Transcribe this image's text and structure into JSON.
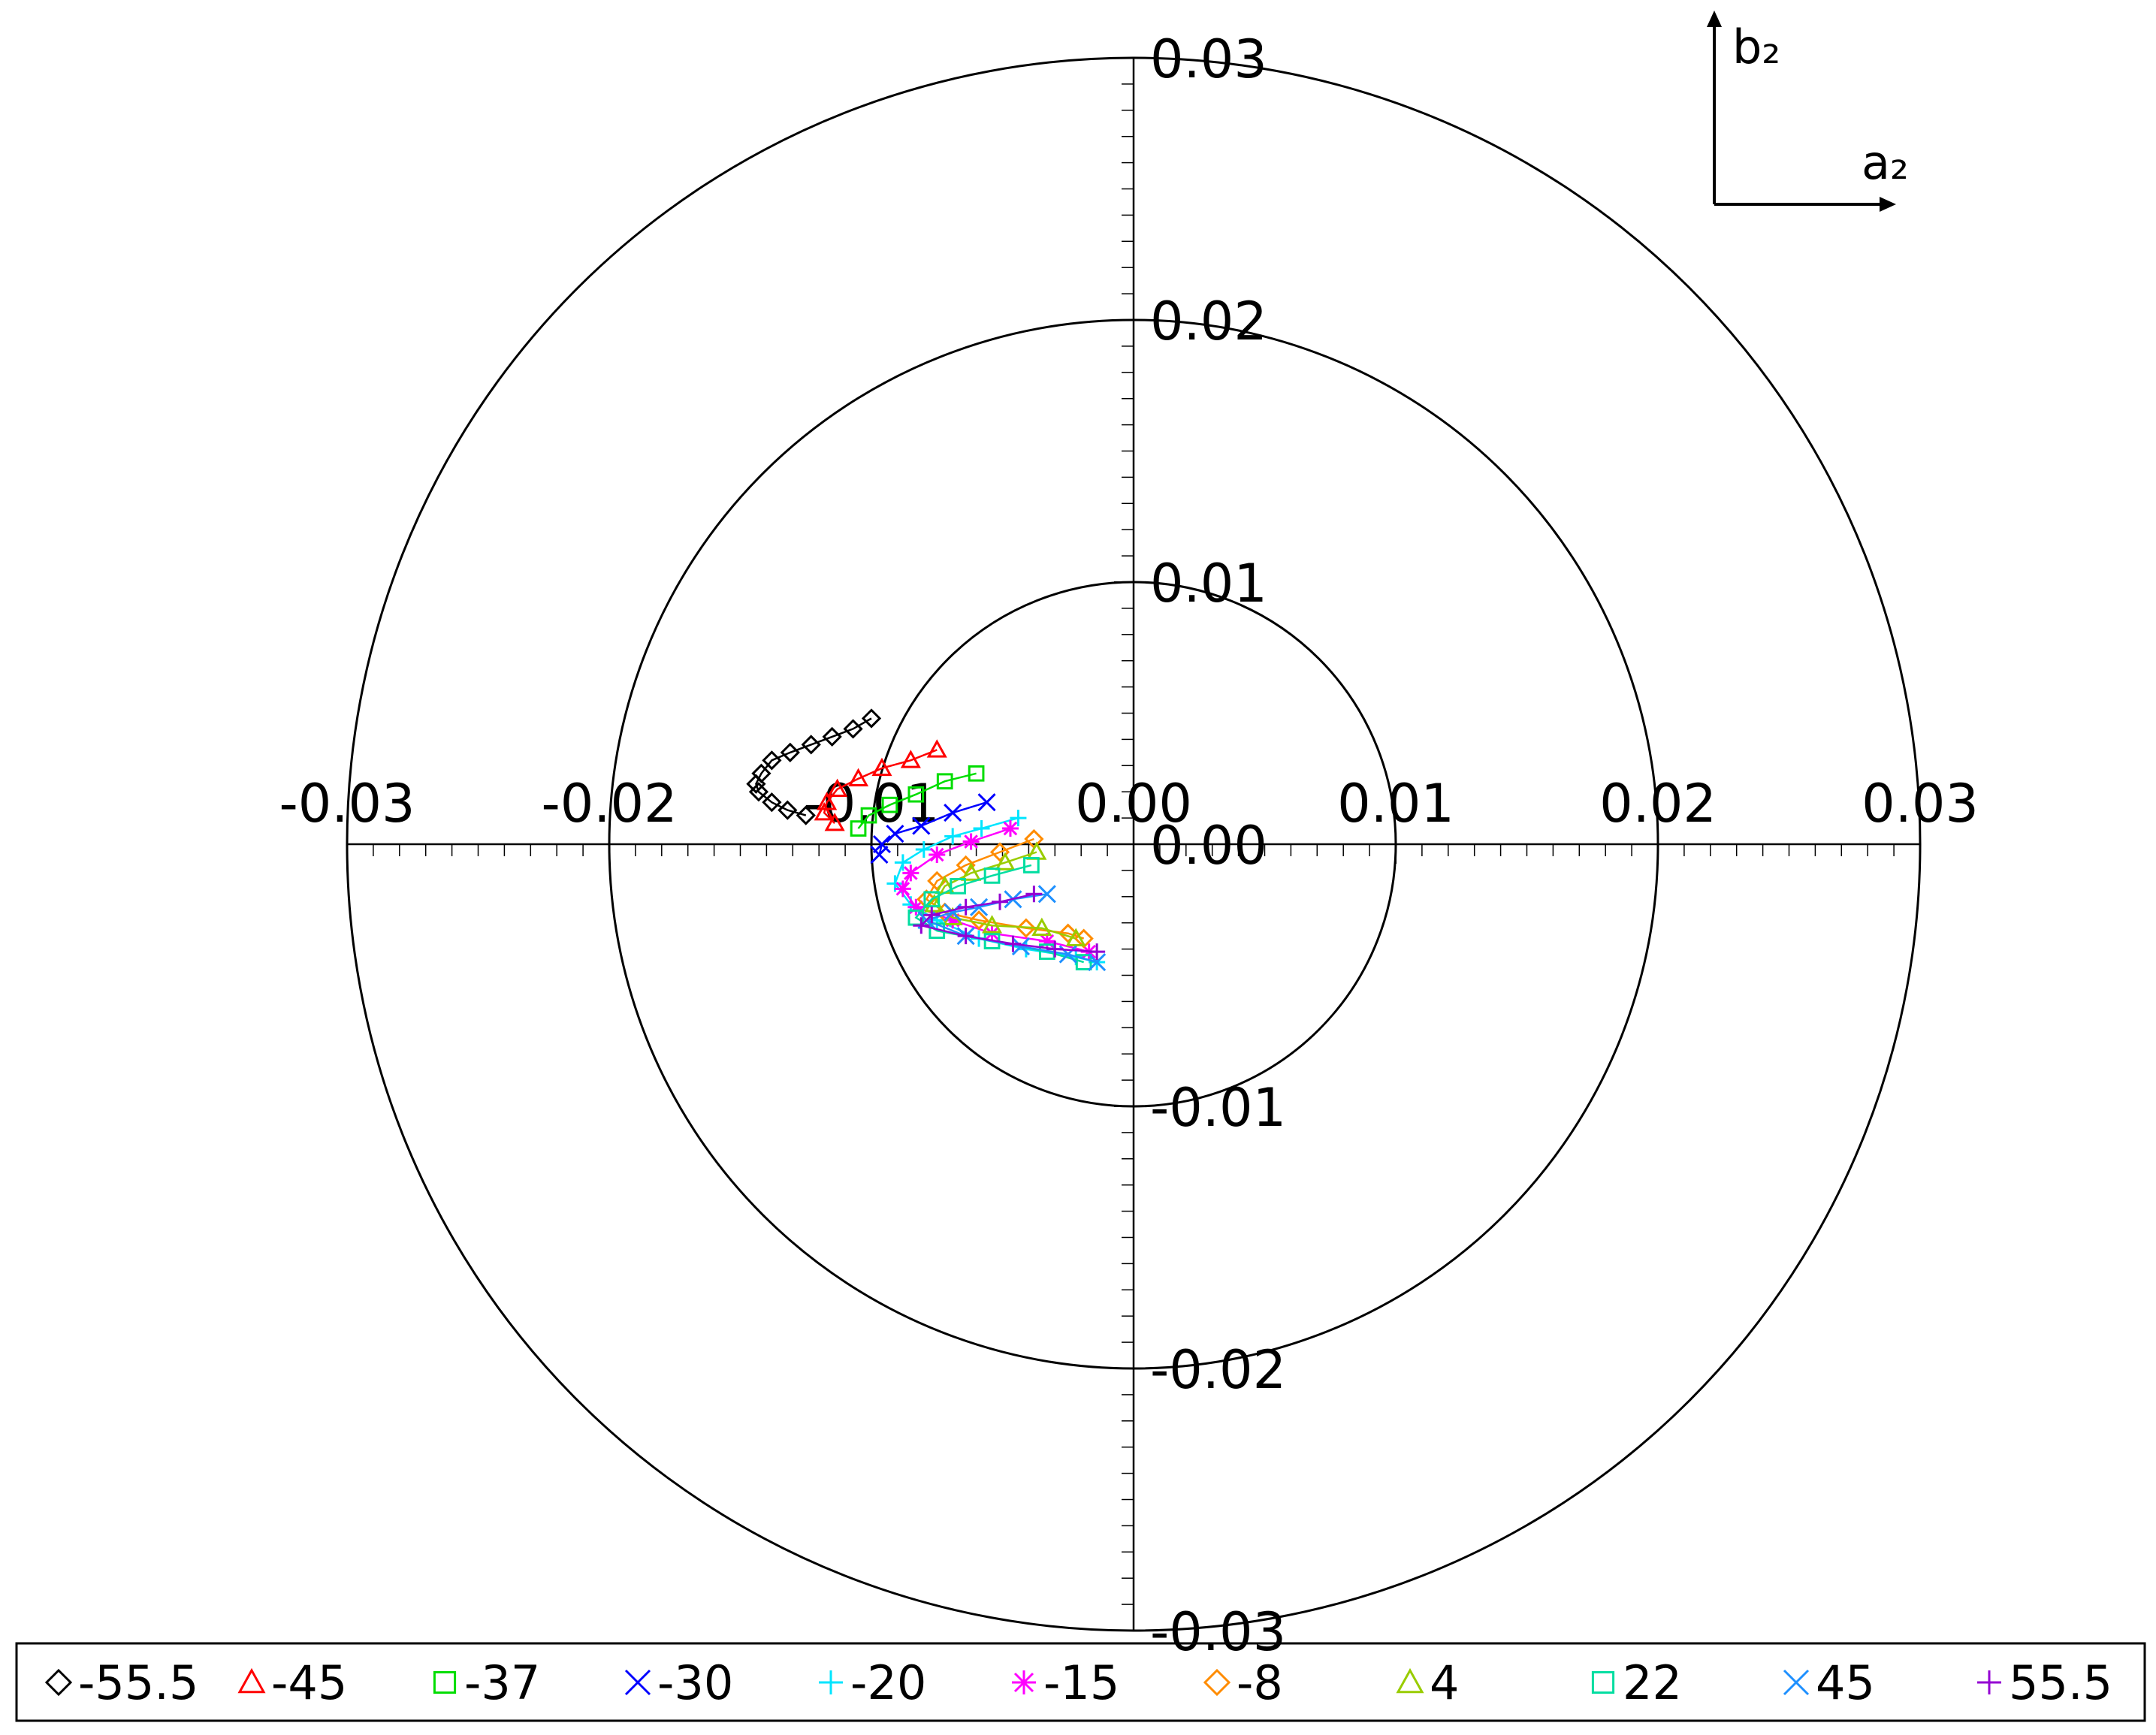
{
  "chart_data": {
    "type": "scatter",
    "xlim": [
      -0.03,
      0.03
    ],
    "ylim": [
      -0.03,
      0.03
    ],
    "xticks": [
      -0.03,
      -0.02,
      -0.01,
      {
        "value": 0,
        "label": "0.00"
      },
      0.01,
      0.02,
      0.03
    ],
    "yticks": [
      -0.03,
      -0.02,
      -0.01,
      {
        "value": 0,
        "label": "0.00"
      },
      0.01,
      0.02,
      0.03
    ],
    "annotations": [
      "b₂",
      "a₂"
    ],
    "series": [
      {
        "name": "-55.5",
        "color": "#000000",
        "marker": "diamond",
        "x": [
          -0.01,
          -0.0107,
          -0.0115,
          -0.0123,
          -0.0131,
          -0.0138,
          -0.0142,
          -0.0144,
          -0.0143,
          -0.0138,
          -0.0132,
          -0.0125
        ],
        "values": [
          0.0048,
          0.0044,
          0.0041,
          0.0038,
          0.0035,
          0.0032,
          0.0027,
          0.0023,
          0.002,
          0.0016,
          0.0013,
          0.0011
        ]
      },
      {
        "name": "-45",
        "color": "#ff0000",
        "marker": "triangle",
        "x": [
          -0.0075,
          -0.0085,
          -0.0096,
          -0.0105,
          -0.0113,
          -0.0117,
          -0.0118,
          -0.0114
        ],
        "values": [
          0.0036,
          0.0032,
          0.0029,
          0.0025,
          0.0021,
          0.0016,
          0.0012,
          0.0008
        ]
      },
      {
        "name": "-37",
        "color": "#00dd00",
        "marker": "square",
        "x": [
          -0.006,
          -0.0072,
          -0.0083,
          -0.0093,
          -0.0101,
          -0.0105
        ],
        "values": [
          0.0027,
          0.0024,
          0.0019,
          0.0015,
          0.0011,
          0.0006
        ]
      },
      {
        "name": "-30",
        "color": "#0000ff",
        "marker": "x",
        "x": [
          -0.0056,
          -0.0069,
          -0.0081,
          -0.0091,
          -0.0096,
          -0.0097
        ],
        "values": [
          0.0016,
          0.0012,
          0.0007,
          0.0004,
          0.0,
          -0.0004
        ]
      },
      {
        "name": "-20",
        "color": "#00e5ff",
        "marker": "plus",
        "x": [
          -0.0044,
          -0.0058,
          -0.0069,
          -0.008,
          -0.0088,
          -0.0091,
          -0.0085,
          -0.0075,
          -0.0059,
          -0.0041,
          -0.0022,
          -0.0014
        ],
        "values": [
          0.001,
          0.0006,
          0.0003,
          -0.0002,
          -0.0007,
          -0.0015,
          -0.0023,
          -0.0029,
          -0.0036,
          -0.004,
          -0.0043,
          -0.0045
        ]
      },
      {
        "name": "-15",
        "color": "#ff00ff",
        "marker": "star",
        "x": [
          -0.0047,
          -0.0062,
          -0.0075,
          -0.0085,
          -0.0088,
          -0.0083,
          -0.0069,
          -0.0054,
          -0.0033,
          -0.0017
        ],
        "values": [
          0.0006,
          0.0001,
          -0.0004,
          -0.0011,
          -0.0017,
          -0.0024,
          -0.0029,
          -0.0034,
          -0.0037,
          -0.0041
        ]
      },
      {
        "name": "-8",
        "color": "#ff8c00",
        "marker": "diamond",
        "x": [
          -0.0038,
          -0.0051,
          -0.0064,
          -0.0075,
          -0.0079,
          -0.0072,
          -0.0059,
          -0.0041,
          -0.0025,
          -0.0019
        ],
        "values": [
          0.0002,
          -0.0003,
          -0.0008,
          -0.0014,
          -0.0021,
          -0.0026,
          -0.0029,
          -0.0032,
          -0.0034,
          -0.0036
        ]
      },
      {
        "name": "4",
        "color": "#99cc00",
        "marker": "triangle",
        "x": [
          -0.0037,
          -0.0049,
          -0.0062,
          -0.0072,
          -0.0076,
          -0.0069,
          -0.0054,
          -0.0035,
          -0.0022
        ],
        "values": [
          -0.0003,
          -0.0007,
          -0.0011,
          -0.0016,
          -0.0023,
          -0.0028,
          -0.0031,
          -0.0032,
          -0.0036
        ]
      },
      {
        "name": "22",
        "color": "#00dda0",
        "marker": "square",
        "x": [
          -0.0039,
          -0.0054,
          -0.0067,
          -0.0077,
          -0.0083,
          -0.0075,
          -0.0054,
          -0.0033,
          -0.0019
        ],
        "values": [
          -0.0008,
          -0.0012,
          -0.0016,
          -0.0021,
          -0.0028,
          -0.0033,
          -0.0037,
          -0.0041,
          -0.0045
        ]
      },
      {
        "name": "45",
        "color": "#1e90ff",
        "marker": "x",
        "x": [
          -0.0033,
          -0.0046,
          -0.0059,
          -0.0069,
          -0.0079,
          -0.0064,
          -0.0043,
          -0.0025,
          -0.0014
        ],
        "values": [
          -0.0019,
          -0.0021,
          -0.0024,
          -0.0026,
          -0.0029,
          -0.0035,
          -0.0039,
          -0.0042,
          -0.0045
        ]
      },
      {
        "name": "55.5",
        "color": "#9400d3",
        "marker": "plus",
        "x": [
          -0.0038,
          -0.0051,
          -0.0064,
          -0.0077,
          -0.0081,
          -0.0064,
          -0.0046,
          -0.003,
          -0.0014
        ],
        "values": [
          -0.0019,
          -0.0022,
          -0.0024,
          -0.0027,
          -0.0031,
          -0.0035,
          -0.0038,
          -0.004,
          -0.0041
        ]
      }
    ]
  }
}
